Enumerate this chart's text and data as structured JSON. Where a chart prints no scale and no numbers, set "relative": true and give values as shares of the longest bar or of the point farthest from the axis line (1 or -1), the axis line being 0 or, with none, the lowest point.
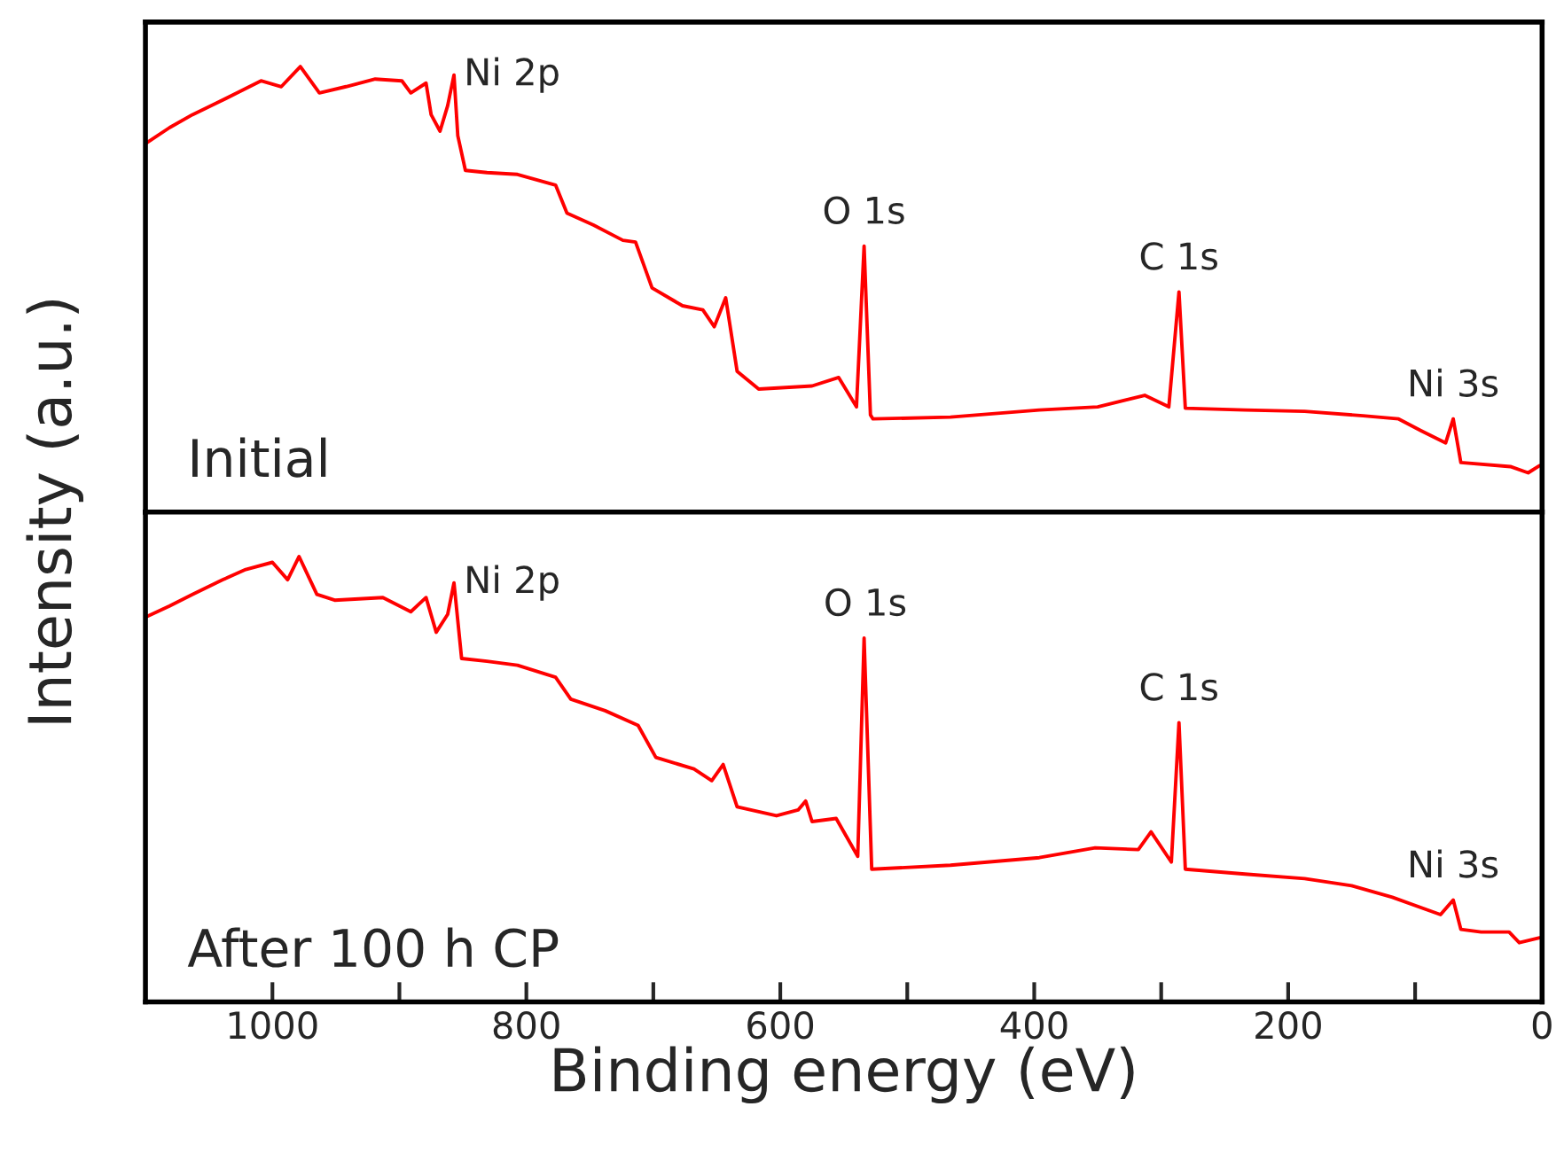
{
  "chart_data": [
    {
      "type": "line",
      "relative": true,
      "ylabel": "Intensity (a.u.)",
      "xlim": [
        1100,
        0
      ],
      "tick_labels": false,
      "grid": false,
      "legend": false,
      "marker": "none",
      "line_style": "solid",
      "annotations": [
        {
          "text": "Ni 2p",
          "x": 857,
          "y": 0.981
        },
        {
          "text": "O 1s",
          "x": 534,
          "y": 0.597
        },
        {
          "text": "C 1s",
          "x": 286,
          "y": 0.494
        },
        {
          "text": "Ni 3s",
          "x": 70,
          "y": 0.209
        },
        "Initial"
      ],
      "series": [
        {
          "color": "#ff0000",
          "x": [
            1099,
            1081,
            1063,
            1044,
            1025,
            1009,
            993,
            978,
            963,
            942,
            919,
            898,
            891,
            879,
            875,
            868,
            862,
            857,
            854,
            848,
            831,
            807,
            777,
            768,
            747,
            724,
            714,
            701,
            677,
            661,
            652,
            643,
            634,
            617,
            575,
            554,
            540,
            534,
            529,
            527,
            466,
            396,
            350,
            313,
            294,
            286,
            281,
            234,
            187,
            141,
            113,
            95,
            76,
            70,
            64,
            25,
            11,
            2
          ],
          "values": [
            0.829,
            0.863,
            0.892,
            0.918,
            0.945,
            0.968,
            0.955,
            1.0,
            0.941,
            0.955,
            0.972,
            0.968,
            0.941,
            0.963,
            0.892,
            0.855,
            0.912,
            0.981,
            0.845,
            0.767,
            0.762,
            0.758,
            0.734,
            0.671,
            0.644,
            0.61,
            0.606,
            0.503,
            0.463,
            0.454,
            0.416,
            0.481,
            0.316,
            0.276,
            0.283,
            0.302,
            0.236,
            0.597,
            0.218,
            0.209,
            0.213,
            0.229,
            0.236,
            0.262,
            0.236,
            0.494,
            0.233,
            0.229,
            0.226,
            0.216,
            0.209,
            0.182,
            0.155,
            0.209,
            0.111,
            0.102,
            0.088,
            0.104
          ]
        }
      ]
    },
    {
      "type": "line",
      "relative": true,
      "xlabel": "Binding energy (eV)",
      "xlim": [
        1100,
        0
      ],
      "xticks": [
        1000,
        {
          "value": 900,
          "label": null
        },
        800,
        {
          "value": 700,
          "label": null
        },
        600,
        {
          "value": 500,
          "label": null
        },
        400,
        {
          "value": 300,
          "label": null
        },
        200,
        {
          "value": 100,
          "label": null
        },
        0
      ],
      "tick_labels": "x",
      "grid": false,
      "legend": false,
      "marker": "none",
      "line_style": "solid",
      "annotations": [
        {
          "text": "Ni 2p",
          "x": 857,
          "y": 0.941
        },
        {
          "text": "O 1s",
          "x": 533,
          "y": 0.817
        },
        {
          "text": "C 1s",
          "x": 286,
          "y": 0.627
        },
        {
          "text": "Ni 3s",
          "x": 70,
          "y": 0.229
        },
        "After 100 h CP"
      ],
      "series": [
        {
          "color": "#ff0000",
          "x": [
            1099,
            1081,
            1063,
            1039,
            1021,
            1000,
            988,
            979,
            965,
            951,
            913,
            891,
            879,
            871,
            862,
            857,
            851,
            831,
            807,
            777,
            765,
            738,
            712,
            698,
            668,
            654,
            645,
            634,
            603,
            586,
            580,
            575,
            556,
            539,
            534,
            528,
            466,
            396,
            352,
            318,
            308,
            292,
            286,
            281,
            234,
            187,
            150,
            118,
            80,
            70,
            64,
            48,
            26,
            18,
            2
          ],
          "values": [
            0.865,
            0.889,
            0.915,
            0.948,
            0.971,
            0.987,
            0.948,
            1.0,
            0.915,
            0.902,
            0.908,
            0.876,
            0.908,
            0.83,
            0.87,
            0.941,
            0.771,
            0.765,
            0.756,
            0.729,
            0.68,
            0.654,
            0.621,
            0.549,
            0.523,
            0.497,
            0.533,
            0.438,
            0.418,
            0.431,
            0.451,
            0.405,
            0.412,
            0.327,
            0.817,
            0.298,
            0.307,
            0.324,
            0.346,
            0.342,
            0.382,
            0.314,
            0.627,
            0.298,
            0.287,
            0.277,
            0.261,
            0.235,
            0.196,
            0.229,
            0.163,
            0.157,
            0.157,
            0.133,
            0.144
          ]
        }
      ]
    }
  ]
}
